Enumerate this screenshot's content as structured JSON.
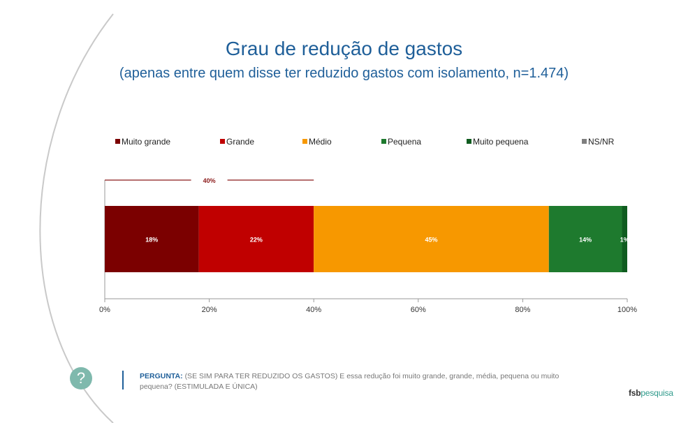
{
  "title": "Grau de redução de gastos",
  "subtitle": "(apenas entre quem disse ter reduzido gastos com isolamento, n=1.474)",
  "question": {
    "label": "PERGUNTA:",
    "text": "(SE SIM PARA TER REDUZIDO OS GASTOS) E essa redução foi muito grande, grande, média, pequena ou muito pequena? (ESTIMULADA E ÚNICA)"
  },
  "logo": {
    "part1": "fsb",
    "part2": "pesquisa"
  },
  "icons": {
    "question": "question-mark-icon"
  },
  "chart_data": {
    "type": "bar",
    "orientation": "horizontal",
    "stacked": true,
    "series": [
      {
        "name": "Muito grande",
        "value": 18,
        "label": "18%",
        "color": "#7b0000"
      },
      {
        "name": "Grande",
        "value": 22,
        "label": "22%",
        "color": "#c00000"
      },
      {
        "name": "Médio",
        "value": 45,
        "label": "45%",
        "color": "#f79800"
      },
      {
        "name": "Pequena",
        "value": 14,
        "label": "14%",
        "color": "#1e7a2e"
      },
      {
        "name": "Muito pequena",
        "value": 1,
        "label": "1%",
        "color": "#0f5c1f"
      },
      {
        "name": "NS/NR",
        "value": 0,
        "label": "",
        "color": "#7f7f7f"
      }
    ],
    "bracket": {
      "from": 0,
      "to": 40,
      "label": "40%",
      "color": "#8b1a1a"
    },
    "xlim": [
      0,
      100
    ],
    "xticks": [
      "0%",
      "20%",
      "40%",
      "60%",
      "80%",
      "100%"
    ],
    "legend_position": "top"
  }
}
